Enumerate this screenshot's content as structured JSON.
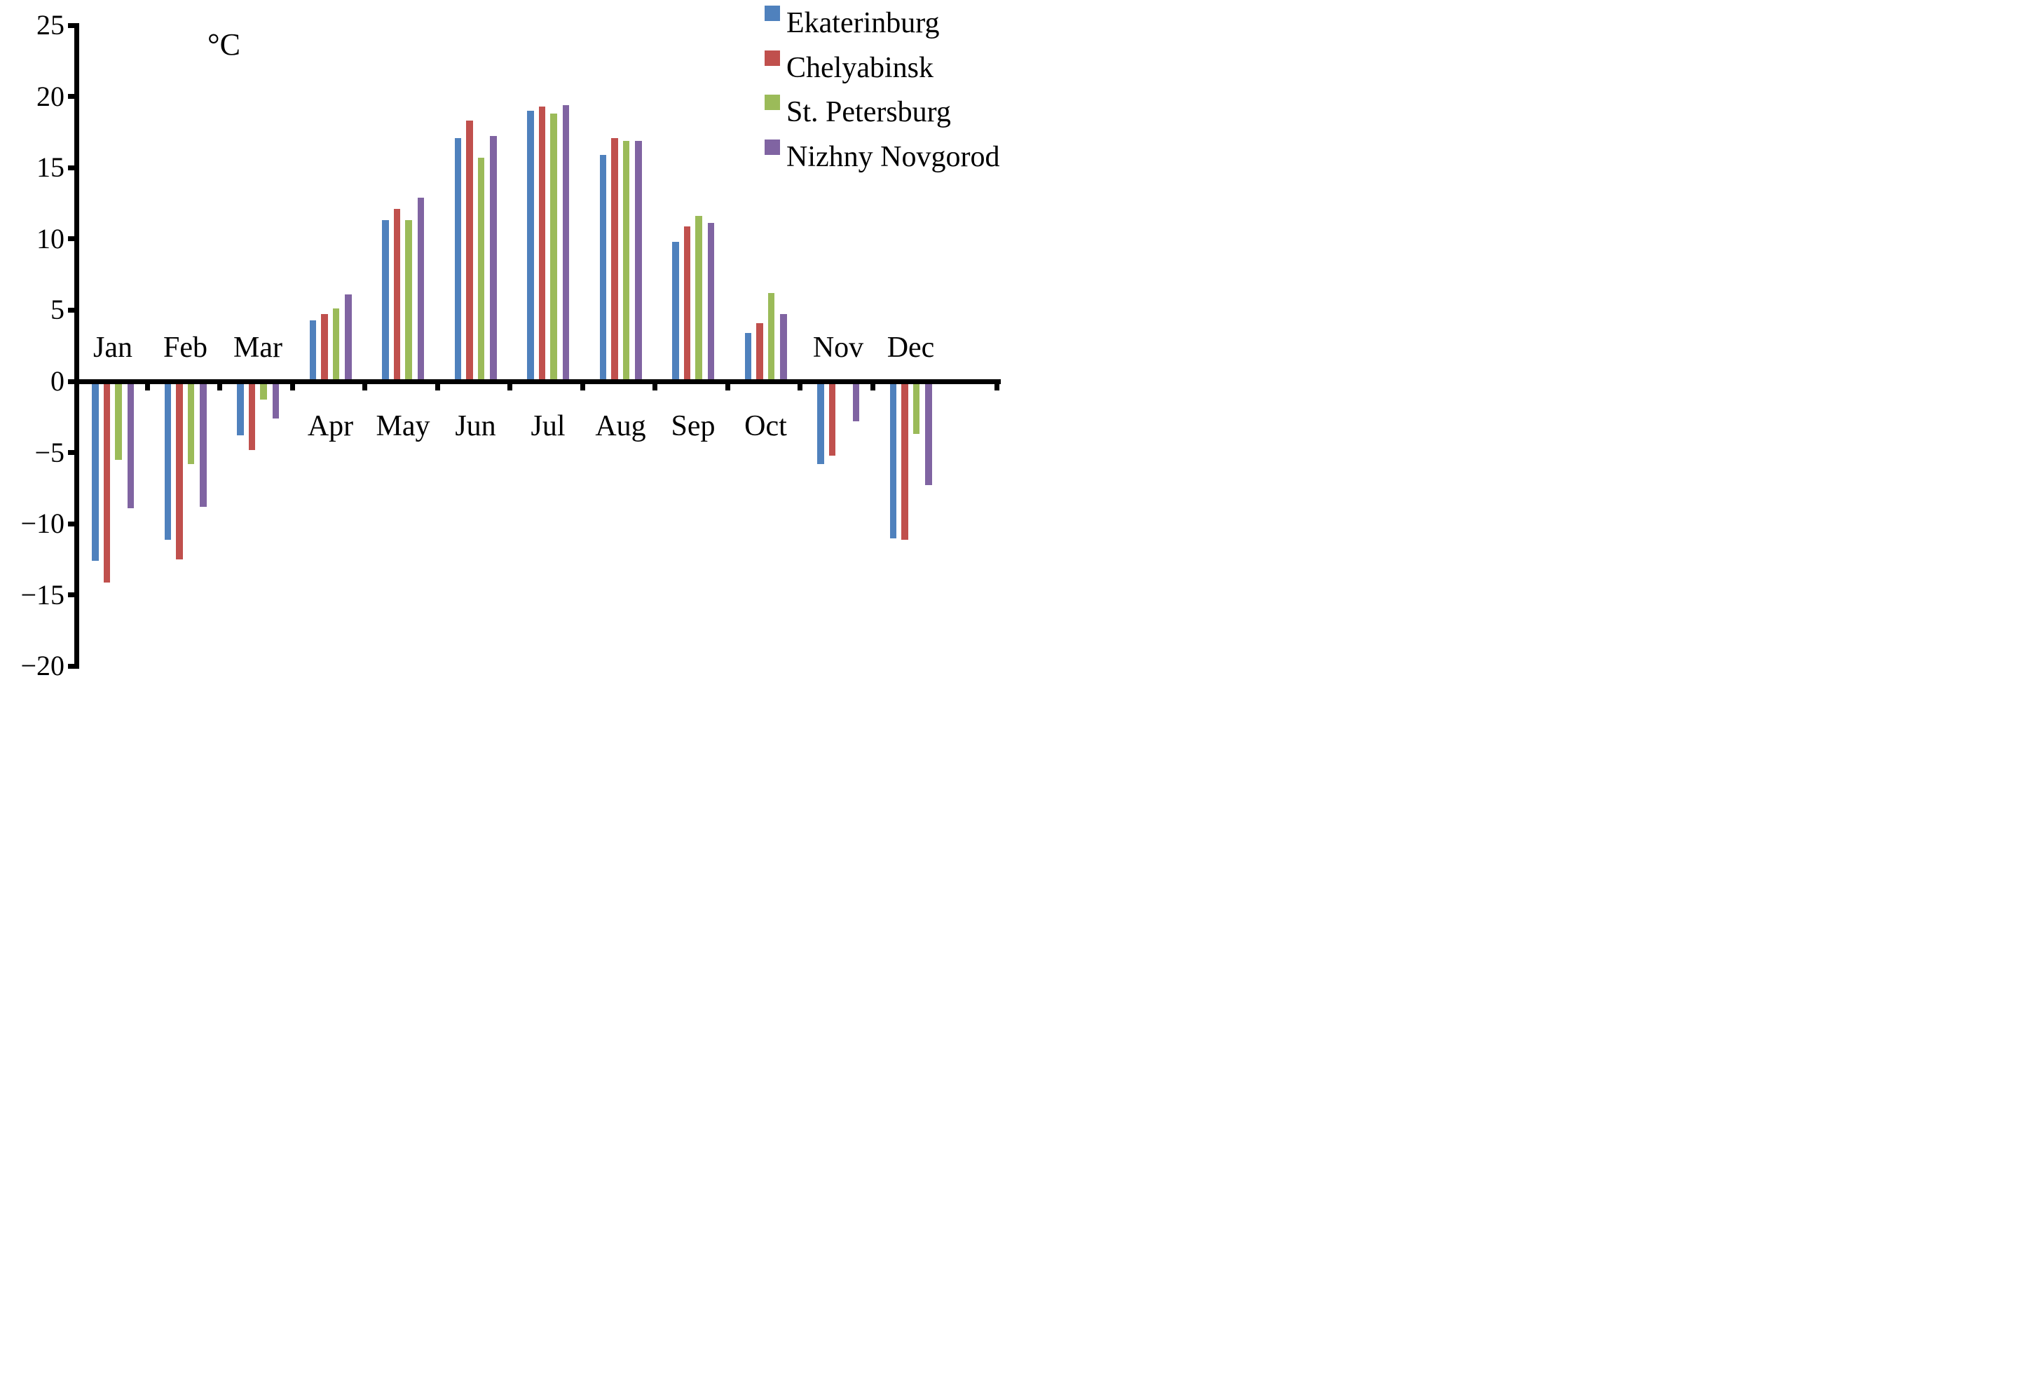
{
  "chart_data": {
    "type": "bar",
    "title": "",
    "unit_label": "°C",
    "categories": [
      "Jan",
      "Feb",
      "Mar",
      "Apr",
      "May",
      "Jun",
      "Jul",
      "Aug",
      "Sep",
      "Oct",
      "Nov",
      "Dec"
    ],
    "series": [
      {
        "name": "Ekaterinburg",
        "color": "#4F81BD",
        "values": [
          -12.6,
          -11.1,
          -3.8,
          4.3,
          11.3,
          17.1,
          19.0,
          15.9,
          9.8,
          3.4,
          -5.8,
          -11.0
        ]
      },
      {
        "name": "Chelyabinsk",
        "color": "#C0504D",
        "values": [
          -14.1,
          -12.5,
          -4.8,
          4.7,
          12.1,
          18.3,
          19.3,
          17.1,
          10.9,
          4.1,
          -5.2,
          -11.1
        ]
      },
      {
        "name": "St. Petersburg",
        "color": "#9BBB59",
        "values": [
          -5.5,
          -5.8,
          -1.3,
          5.1,
          11.3,
          15.7,
          18.8,
          16.9,
          11.6,
          6.2,
          0.1,
          -3.7
        ]
      },
      {
        "name": "Nizhny Novgorod",
        "color": "#8064A2",
        "values": [
          -8.9,
          -8.8,
          -2.6,
          6.1,
          12.9,
          17.2,
          19.4,
          16.9,
          11.1,
          4.7,
          -2.8,
          -7.3
        ]
      }
    ],
    "ylim": [
      -20,
      25
    ],
    "ytick_step": 5,
    "yticks": [
      25,
      20,
      15,
      10,
      5,
      0,
      -5,
      -10,
      -15,
      -20
    ],
    "ytick_labels": [
      "25",
      "20",
      "15",
      "10",
      "5",
      "0",
      "−5",
      "−10",
      "−15",
      "−20"
    ],
    "axis_color": "#000000",
    "grid": false,
    "legend_position": "top-right"
  }
}
